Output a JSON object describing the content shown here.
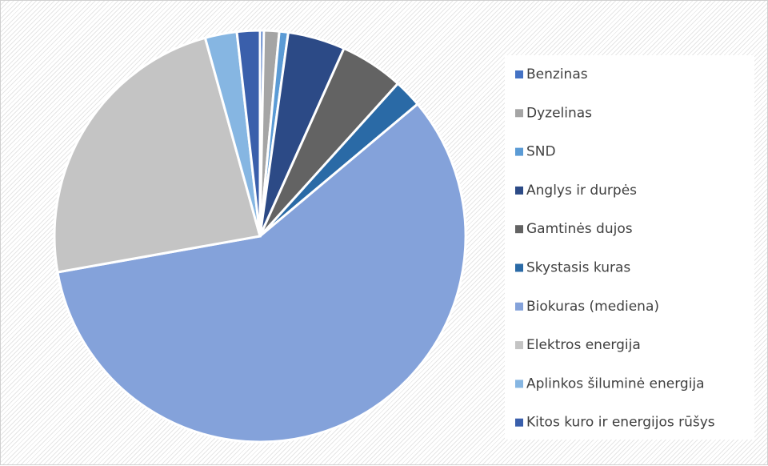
{
  "chart_data": {
    "type": "pie",
    "categories": [
      "Benzinas",
      "Dyzelinas",
      "SND",
      "Anglys ir durpės",
      "Gamtinės dujos",
      "Skystasis kuras",
      "Biokuras (mediena)",
      "Elektros energija",
      "Aplinkos šiluminė energija",
      "Kitos kuro ir energijos rūšys"
    ],
    "values": [
      0.3,
      1.2,
      0.7,
      4.5,
      5.0,
      2.2,
      58.3,
      23.5,
      2.5,
      1.8
    ],
    "colors": [
      "#4472c4",
      "#a5a5a5",
      "#5b9bd5",
      "#2c4a86",
      "#636363",
      "#2a6aa6",
      "#84a2da",
      "#c4c4c4",
      "#86b6e2",
      "#3a5fab"
    ],
    "legend": "right"
  }
}
